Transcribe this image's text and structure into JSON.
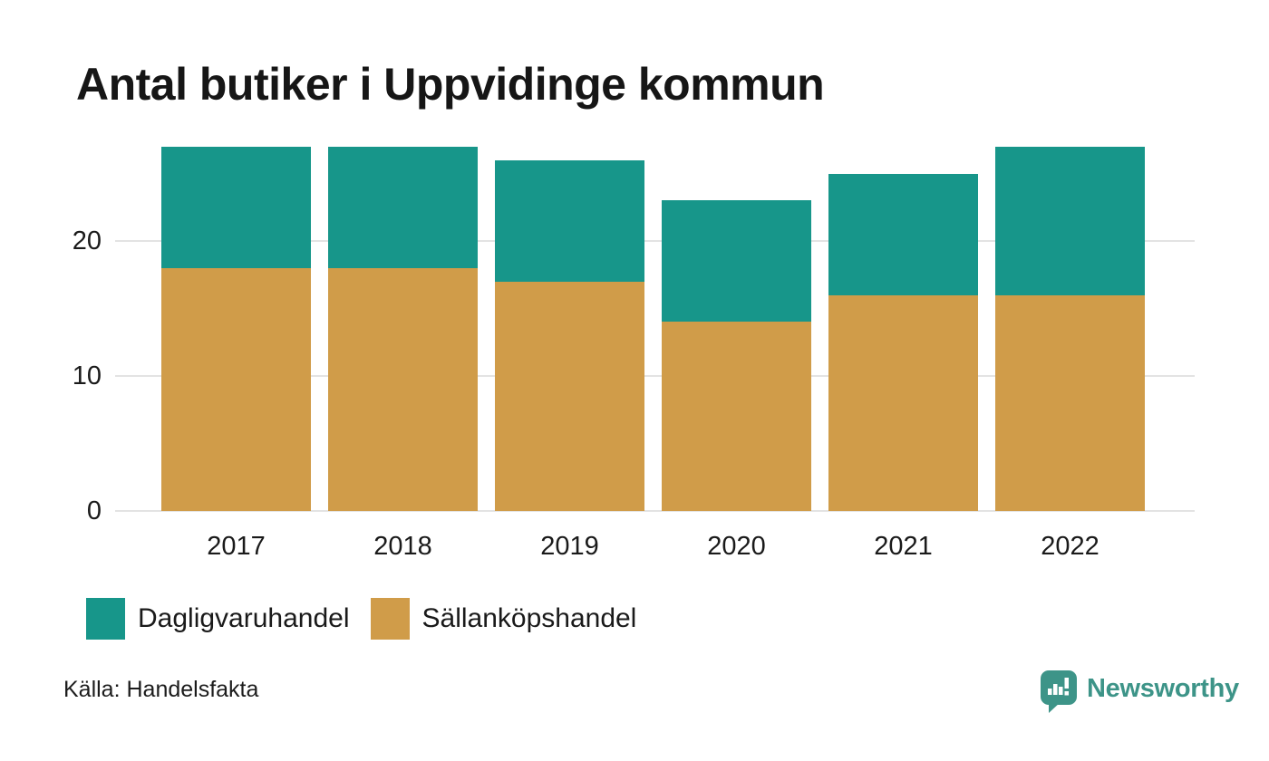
{
  "title": "Antal butiker i Uppvidinge kommun",
  "source": "Källa: Handelsfakta",
  "branding": {
    "name": "Newsworthy",
    "color": "#3d9488",
    "icon": "newsworthy-speech-bubble-chart-icon"
  },
  "chart_data": {
    "type": "bar",
    "stacked": true,
    "title": "Antal butiker i Uppvidinge kommun",
    "categories": [
      "2017",
      "2018",
      "2019",
      "2020",
      "2021",
      "2022"
    ],
    "series": [
      {
        "name": "Dagligvaruhandel",
        "color": "#17968a",
        "stack_position": "top",
        "values": [
          9,
          9,
          9,
          9,
          9,
          11
        ]
      },
      {
        "name": "Sällanköpshandel",
        "color": "#d09c49",
        "stack_position": "bottom",
        "values": [
          18,
          18,
          17,
          14,
          16,
          16
        ]
      }
    ],
    "totals": [
      27,
      27,
      26,
      23,
      25,
      27
    ],
    "xlabel": "",
    "ylabel": "",
    "yticks": [
      0,
      10,
      20
    ],
    "ylim": [
      0,
      27
    ],
    "grid": "horizontal-only",
    "legend_position": "bottom-left"
  }
}
